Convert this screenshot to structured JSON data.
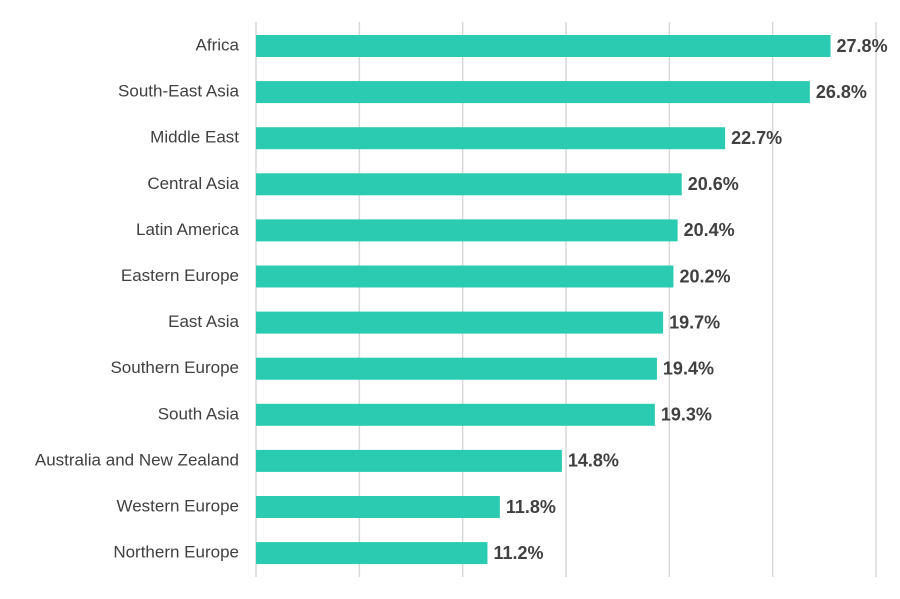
{
  "chart_data": {
    "type": "bar",
    "orientation": "horizontal",
    "categories": [
      "Africa",
      "South-East Asia",
      "Middle East",
      "Central Asia",
      "Latin America",
      "Eastern Europe",
      "East Asia",
      "Southern Europe",
      "South Asia",
      "Australia and New Zealand",
      "Western Europe",
      "Northern Europe"
    ],
    "values": [
      27.8,
      26.8,
      22.7,
      20.6,
      20.4,
      20.2,
      19.7,
      19.4,
      19.3,
      14.8,
      11.8,
      11.2
    ],
    "value_labels": [
      "27.8%",
      "26.8%",
      "22.7%",
      "20.6%",
      "20.4%",
      "20.2%",
      "19.7%",
      "19.4%",
      "19.3%",
      "14.8%",
      "11.8%",
      "11.2%"
    ],
    "xlim": [
      0,
      30
    ],
    "x_gridlines": [
      0,
      5,
      10,
      15,
      20,
      25,
      30
    ],
    "grid": true,
    "legend": "none",
    "bar_color": "#2bcbb1",
    "title": "",
    "xlabel": "",
    "ylabel": ""
  }
}
